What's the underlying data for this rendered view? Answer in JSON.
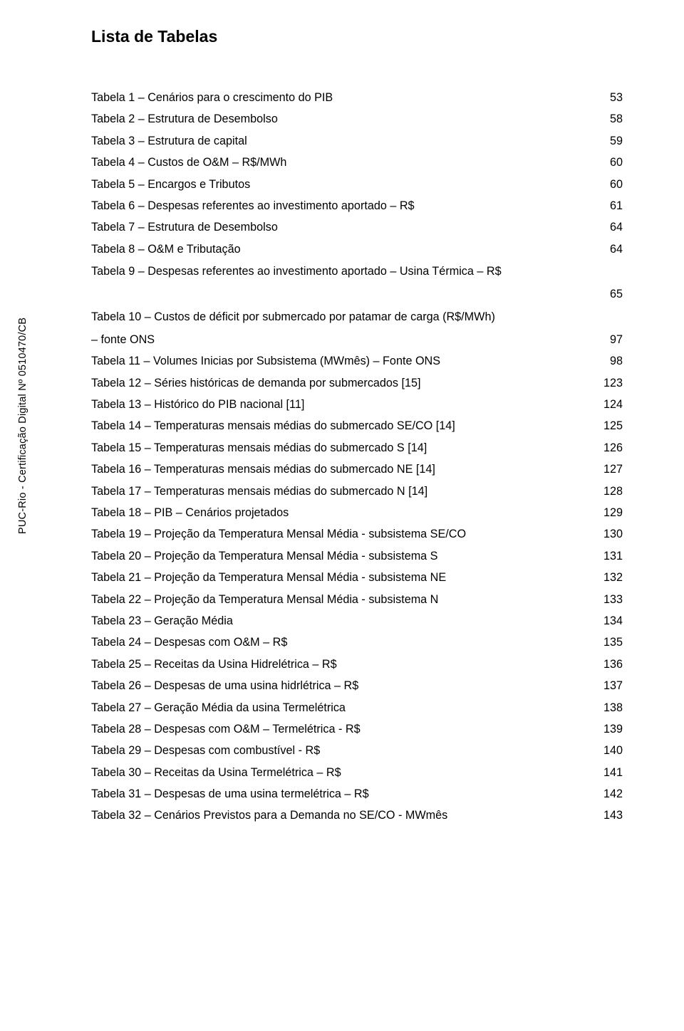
{
  "sidebar": "PUC-Rio - Certificação Digital Nº 0510470/CB",
  "title": "Lista de Tabelas",
  "entries": [
    {
      "label": "Tabela 1 – Cenários para o crescimento do PIB",
      "page": "53"
    },
    {
      "label": "Tabela 2 – Estrutura de Desembolso",
      "page": "58"
    },
    {
      "label": "Tabela 3 – Estrutura de capital",
      "page": "59"
    },
    {
      "label": "Tabela 4 – Custos de O&M – R$/MWh",
      "page": "60"
    },
    {
      "label": "Tabela 5 – Encargos e Tributos",
      "page": "60"
    },
    {
      "label": "Tabela 6 – Despesas referentes ao investimento aportado – R$",
      "page": "61"
    },
    {
      "label": "Tabela 7 – Estrutura de Desembolso",
      "page": "64"
    },
    {
      "label": "Tabela 8 – O&M e Tributação",
      "page": "64"
    },
    {
      "label": "Tabela 9 – Despesas referentes ao investimento aportado – Usina Térmica – R$",
      "page": "",
      "noDots": true
    },
    {
      "label": "",
      "page": "65",
      "contOnly": true
    },
    {
      "label": "Tabela 10 – Custos de déficit por submercado por patamar de carga (R$/MWh)",
      "page": "",
      "noDots": true
    },
    {
      "label": "– fonte ONS",
      "page": "97"
    },
    {
      "label": "Tabela 11 – Volumes Inicias por Subsistema (MWmês) – Fonte ONS",
      "page": "98"
    },
    {
      "label": "Tabela 12 – Séries históricas de demanda por submercados [15]",
      "page": "123"
    },
    {
      "label": "Tabela 13 – Histórico do PIB nacional [11]",
      "page": "124"
    },
    {
      "label": "Tabela 14 – Temperaturas mensais médias do submercado SE/CO [14]",
      "page": "125"
    },
    {
      "label": "Tabela 15 – Temperaturas mensais médias do submercado S [14]",
      "page": "126"
    },
    {
      "label": "Tabela 16 – Temperaturas mensais médias do submercado NE [14]",
      "page": "127"
    },
    {
      "label": "Tabela 17 – Temperaturas mensais médias do submercado N [14]",
      "page": "128"
    },
    {
      "label": "Tabela 18 – PIB – Cenários projetados",
      "page": "129"
    },
    {
      "label": "Tabela 19 – Projeção da Temperatura Mensal Média - subsistema SE/CO",
      "page": "130"
    },
    {
      "label": "Tabela 20 – Projeção da Temperatura Mensal Média - subsistema S",
      "page": "131"
    },
    {
      "label": "Tabela 21 –  Projeção da Temperatura Mensal Média - subsistema NE",
      "page": "132"
    },
    {
      "label": "Tabela 22 –  Projeção da Temperatura Mensal Média - subsistema N",
      "page": "133"
    },
    {
      "label": "Tabela 23 – Geração Média",
      "page": "134"
    },
    {
      "label": "Tabela 24 – Despesas com O&M – R$",
      "page": "135"
    },
    {
      "label": "Tabela 25 – Receitas da Usina Hidrelétrica – R$",
      "page": "136"
    },
    {
      "label": "Tabela 26 – Despesas de uma usina hidrlétrica – R$",
      "page": "137"
    },
    {
      "label": "Tabela 27 – Geração Média da usina Termelétrica",
      "page": "138"
    },
    {
      "label": "Tabela 28 – Despesas com O&M – Termelétrica -  R$",
      "page": "139"
    },
    {
      "label": "Tabela 29 – Despesas com combustível - R$",
      "page": "140"
    },
    {
      "label": "Tabela 30 – Receitas da Usina Termelétrica – R$",
      "page": "141"
    },
    {
      "label": "Tabela 31 – Despesas de uma usina termelétrica – R$",
      "page": "142"
    },
    {
      "label": "Tabela 32 – Cenários Previstos para a Demanda no SE/CO - MWmês",
      "page": "143"
    }
  ]
}
